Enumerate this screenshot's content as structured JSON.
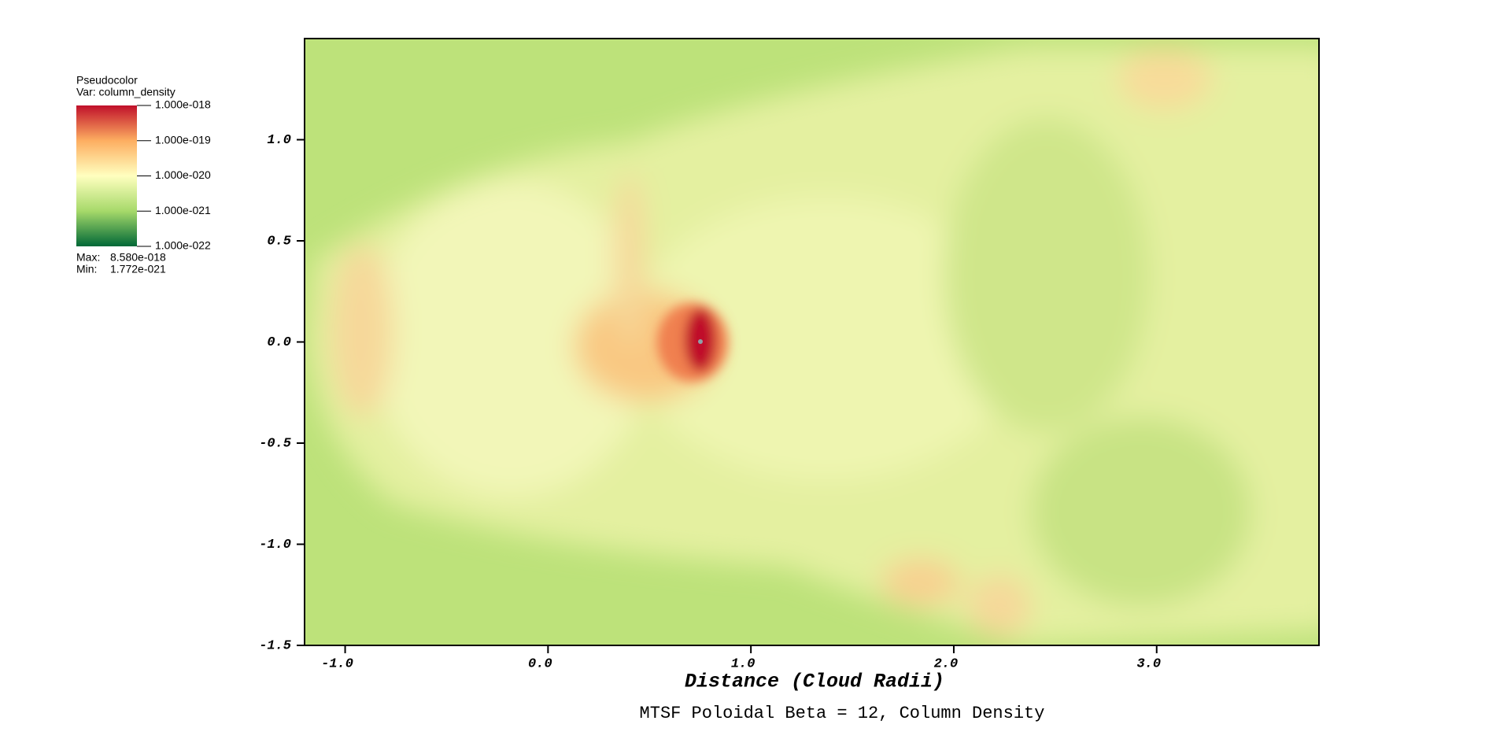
{
  "chart_data": {
    "type": "heatmap",
    "title": "MTSF Poloidal Beta = 12, Column Density",
    "x_label": "Distance (Cloud Radii)",
    "xlim": [
      -1.2,
      3.8
    ],
    "ylim": [
      -1.5,
      1.5
    ],
    "xticks": [
      {
        "value": -1,
        "label": "-1.0"
      },
      {
        "value": 0,
        "label": "0.0"
      },
      {
        "value": 1,
        "label": "1.0"
      },
      {
        "value": 2,
        "label": "2.0"
      },
      {
        "value": 3,
        "label": "3.0"
      }
    ],
    "yticks": [
      {
        "value": 1,
        "label": "1.0"
      },
      {
        "value": 0.5,
        "label": "0.5"
      },
      {
        "value": 0,
        "label": "0.0"
      },
      {
        "value": -0.5,
        "label": "-0.5"
      },
      {
        "value": -1,
        "label": "-1.0"
      },
      {
        "value": -1.5,
        "label": "-1.5"
      }
    ],
    "legend": {
      "title": "Pseudocolor",
      "var": "Var: column_density",
      "log_scale": true,
      "colors": [
        "#006837",
        "#a6d96a",
        "#ffffbf",
        "#fdae61",
        "#c0102a"
      ],
      "ticks": [
        {
          "value": 1e-18,
          "label": "1.000e-018"
        },
        {
          "value": 1e-19,
          "label": "1.000e-019"
        },
        {
          "value": 1e-20,
          "label": "1.000e-020"
        },
        {
          "value": 1e-21,
          "label": "1.000e-021"
        },
        {
          "value": 1e-22,
          "label": "1.000e-022"
        }
      ],
      "max_label": "Max:",
      "max": {
        "value": 8.58e-18,
        "label": "8.580e-018"
      },
      "min_label": "Min:",
      "min": {
        "value": 1.772e-21,
        "label": "1.772e-021"
      }
    }
  }
}
